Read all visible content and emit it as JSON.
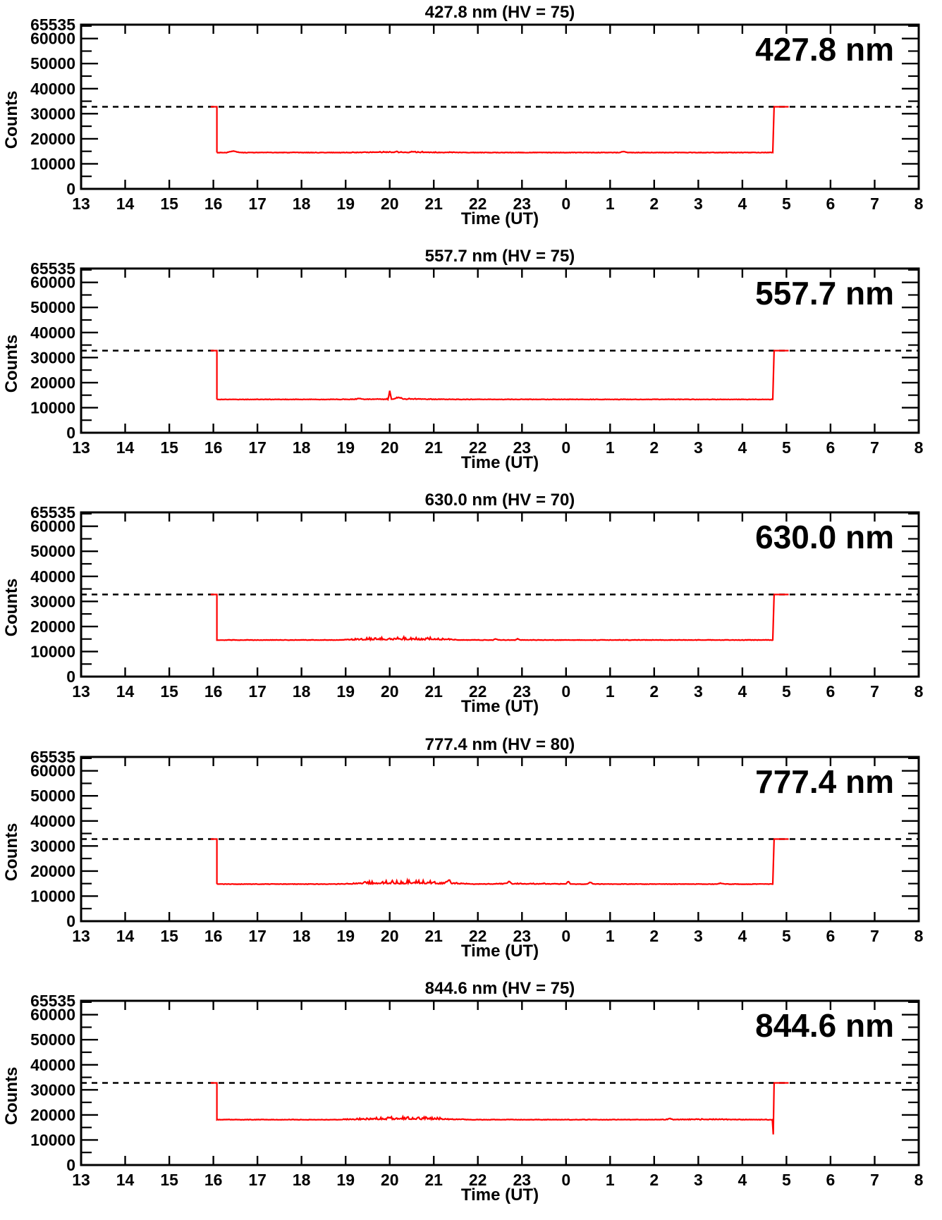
{
  "axes": {
    "xlabel": "Time (UT)",
    "ylabel": "Counts",
    "x_tick_labels": [
      "13",
      "14",
      "15",
      "16",
      "17",
      "18",
      "19",
      "20",
      "21",
      "22",
      "23",
      "0",
      "1",
      "2",
      "3",
      "4",
      "5",
      "6",
      "7",
      "8"
    ],
    "y_tick_labels": [
      "0",
      "10000",
      "20000",
      "30000",
      "40000",
      "50000",
      "60000",
      "65535"
    ],
    "y_tick_values": [
      0,
      10000,
      20000,
      30000,
      40000,
      50000,
      60000,
      65535
    ],
    "axis_color": "#000000",
    "series_color": "#ff0000"
  },
  "chart_data": [
    {
      "type": "line",
      "title": "427.8 nm (HV = 75)",
      "wavelength_label": "427.8 nm",
      "hv": 75,
      "xlabel": "Time (UT)",
      "ylabel": "Counts",
      "ylim": [
        0,
        65535
      ],
      "x_range_hours": [
        13,
        32
      ],
      "threshold_dashed_line": 32767,
      "series_color": "#ff0000",
      "signal": {
        "on_t": 15.94,
        "drop_t": 16.08,
        "baseline": 14500,
        "off_t": 28.69,
        "rise_t": 28.72,
        "plateau_end_t": 29.05,
        "plateau_level": 32767,
        "noise_regions": [
          {
            "from": 18.9,
            "to": 21.9,
            "amp": 400
          }
        ],
        "spikes": [
          {
            "t": 16.45,
            "dv": 600,
            "w": 0.15
          },
          {
            "t": 25.3,
            "dv": 400,
            "w": 0.1
          }
        ],
        "end_dip": null
      }
    },
    {
      "type": "line",
      "title": "557.7 nm (HV = 75)",
      "wavelength_label": "557.7 nm",
      "hv": 75,
      "xlabel": "Time (UT)",
      "ylabel": "Counts",
      "ylim": [
        0,
        65535
      ],
      "x_range_hours": [
        13,
        32
      ],
      "threshold_dashed_line": 32767,
      "series_color": "#ff0000",
      "signal": {
        "on_t": 15.94,
        "drop_t": 16.08,
        "baseline": 13300,
        "off_t": 28.69,
        "rise_t": 28.72,
        "plateau_end_t": 29.05,
        "plateau_level": 32767,
        "noise_regions": [
          {
            "from": 18.6,
            "to": 21.6,
            "amp": 320
          }
        ],
        "spikes": [
          {
            "t": 20.0,
            "dv": 3300,
            "w": 0.035
          },
          {
            "t": 20.2,
            "dv": 700,
            "w": 0.12
          },
          {
            "t": 19.3,
            "dv": 300,
            "w": 0.08
          }
        ],
        "end_dip": null
      }
    },
    {
      "type": "line",
      "title": "630.0 nm (HV = 70)",
      "wavelength_label": "630.0 nm",
      "hv": 70,
      "xlabel": "Time (UT)",
      "ylabel": "Counts",
      "ylim": [
        0,
        65535
      ],
      "x_range_hours": [
        13,
        32
      ],
      "threshold_dashed_line": 32767,
      "series_color": "#ff0000",
      "signal": {
        "on_t": 15.94,
        "drop_t": 16.08,
        "baseline": 14600,
        "off_t": 28.69,
        "rise_t": 28.72,
        "plateau_end_t": 29.05,
        "plateau_level": 32767,
        "noise_regions": [
          {
            "from": 18.8,
            "to": 21.8,
            "amp": 1100
          }
        ],
        "spikes": [
          {
            "t": 22.4,
            "dv": 450,
            "w": 0.06
          },
          {
            "t": 22.9,
            "dv": 500,
            "w": 0.06
          }
        ],
        "end_dip": null
      }
    },
    {
      "type": "line",
      "title": "777.4 nm (HV = 80)",
      "wavelength_label": "777.4 nm",
      "hv": 80,
      "xlabel": "Time (UT)",
      "ylabel": "Counts",
      "ylim": [
        0,
        65535
      ],
      "x_range_hours": [
        13,
        32
      ],
      "threshold_dashed_line": 32767,
      "series_color": "#ff0000",
      "signal": {
        "on_t": 15.94,
        "drop_t": 16.08,
        "baseline": 14800,
        "off_t": 28.69,
        "rise_t": 28.72,
        "plateau_end_t": 29.05,
        "plateau_level": 32767,
        "noise_regions": [
          {
            "from": 18.8,
            "to": 21.9,
            "amp": 1500
          },
          {
            "from": 21.9,
            "to": 24.2,
            "amp": 350
          }
        ],
        "spikes": [
          {
            "t": 21.35,
            "dv": 1800,
            "w": 0.05
          },
          {
            "t": 22.7,
            "dv": 1000,
            "w": 0.06
          },
          {
            "t": 24.05,
            "dv": 1200,
            "w": 0.05
          },
          {
            "t": 24.55,
            "dv": 800,
            "w": 0.07
          },
          {
            "t": 27.5,
            "dv": 350,
            "w": 0.1
          }
        ],
        "end_dip": null
      }
    },
    {
      "type": "line",
      "title": "844.6 nm (HV = 75)",
      "wavelength_label": "844.6 nm",
      "hv": 75,
      "xlabel": "Time (UT)",
      "ylabel": "Counts",
      "ylim": [
        0,
        65535
      ],
      "x_range_hours": [
        13,
        32
      ],
      "threshold_dashed_line": 32767,
      "series_color": "#ff0000",
      "signal": {
        "on_t": 15.94,
        "drop_t": 16.08,
        "baseline": 18100,
        "off_t": 28.68,
        "rise_t": 28.72,
        "plateau_end_t": 29.05,
        "plateau_level": 32767,
        "noise_regions": [
          {
            "from": 18.8,
            "to": 21.9,
            "amp": 1100
          },
          {
            "from": 25.8,
            "to": 28.3,
            "amp": 260
          }
        ],
        "spikes": [
          {
            "t": 26.35,
            "dv": 500,
            "w": 0.06
          }
        ],
        "end_dip": {
          "t": 28.7,
          "v": 12200
        }
      }
    }
  ]
}
